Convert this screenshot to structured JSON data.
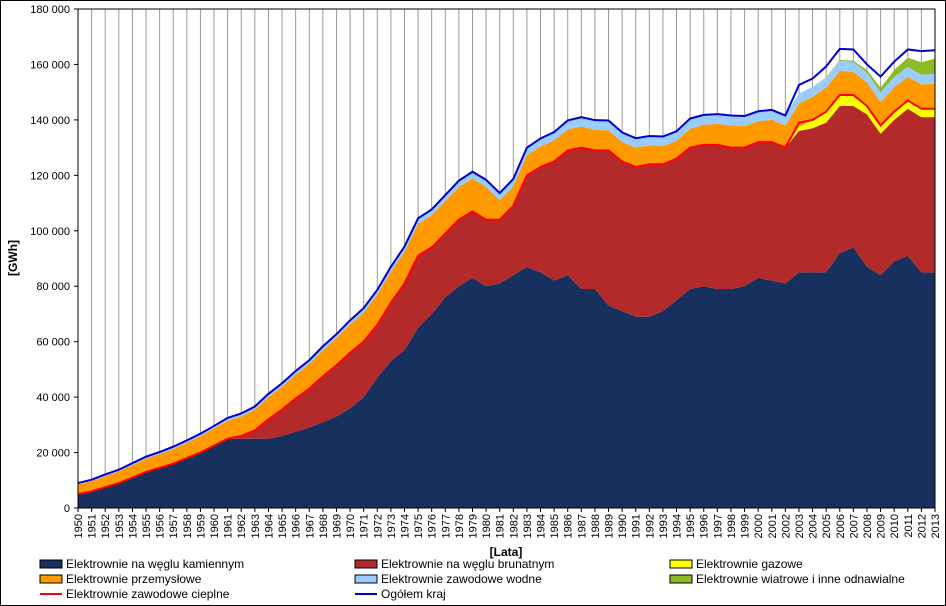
{
  "chart_data": {
    "type": "area",
    "stacked": true,
    "xlabel": "[Lata]",
    "ylabel": "[GWh]",
    "ylim": [
      0,
      180000
    ],
    "yticks": [
      "0",
      "20 000",
      "40 000",
      "60 000",
      "80 000",
      "100 000",
      "120 000",
      "140 000",
      "160 000",
      "180 000"
    ],
    "grid": "vertical",
    "legend": "bottom",
    "x": [
      1950,
      1951,
      1952,
      1953,
      1954,
      1955,
      1956,
      1957,
      1958,
      1959,
      1960,
      1961,
      1962,
      1963,
      1964,
      1965,
      1966,
      1967,
      1968,
      1969,
      1970,
      1971,
      1972,
      1973,
      1974,
      1975,
      1976,
      1977,
      1978,
      1979,
      1980,
      1981,
      1982,
      1983,
      1984,
      1985,
      1986,
      1987,
      1988,
      1989,
      1990,
      1991,
      1992,
      1993,
      1994,
      1995,
      1996,
      1997,
      1998,
      1999,
      2000,
      2001,
      2002,
      2003,
      2004,
      2005,
      2006,
      2007,
      2008,
      2009,
      2010,
      2011,
      2012,
      2013
    ],
    "series": [
      {
        "name": "Elektrownie na węglu kamiennym",
        "color": "#17305e",
        "values": [
          5000,
          6000,
          7500,
          9000,
          11000,
          13000,
          14500,
          16000,
          18000,
          20000,
          22500,
          25000,
          25000,
          25000,
          25000,
          26000,
          27500,
          29000,
          31000,
          33000,
          36000,
          40000,
          47000,
          53000,
          57000,
          65000,
          70000,
          76000,
          80000,
          83000,
          80000,
          81000,
          84000,
          87000,
          85000,
          82000,
          84000,
          79000,
          79000,
          73000,
          71000,
          69000,
          69000,
          71000,
          75000,
          79000,
          80000,
          79000,
          79000,
          80000,
          83000,
          82000,
          81000,
          85000,
          85000,
          85000,
          92000,
          94000,
          87000,
          84000,
          89000,
          91000,
          85000,
          85000
        ]
      },
      {
        "name": "Elektrownie na węglu brunatnym",
        "color": "#b22a2a",
        "values": [
          0,
          0,
          0,
          0,
          0,
          0,
          0,
          0,
          0,
          0,
          0,
          0,
          1000,
          3000,
          7000,
          9500,
          12000,
          14000,
          16500,
          18500,
          20000,
          20000,
          19000,
          21000,
          24000,
          26000,
          24000,
          23000,
          24000,
          24000,
          24000,
          23000,
          25000,
          33000,
          38000,
          43000,
          45000,
          51000,
          50000,
          56000,
          54000,
          54000,
          55000,
          53000,
          51000,
          51000,
          51000,
          52000,
          51000,
          50000,
          49000,
          50000,
          49000,
          51000,
          52000,
          54000,
          53000,
          51000,
          55000,
          51000,
          51000,
          53000,
          56000,
          56000
        ]
      },
      {
        "name": "Elektrownie gazowe",
        "color": "#ffff00",
        "values": [
          0,
          0,
          0,
          0,
          0,
          0,
          0,
          0,
          0,
          0,
          0,
          0,
          0,
          0,
          0,
          0,
          0,
          0,
          0,
          0,
          0,
          0,
          0,
          0,
          0,
          0,
          0,
          0,
          0,
          0,
          0,
          0,
          0,
          0,
          0,
          0,
          0,
          0,
          0,
          0,
          0,
          0,
          0,
          0,
          0,
          0,
          0,
          0,
          0,
          0,
          0,
          0,
          0,
          1500,
          3000,
          4500,
          4000,
          4000,
          3500,
          3000,
          3000,
          3000,
          3000,
          3000
        ]
      },
      {
        "name": "Elektrownie przemysłowe",
        "color": "#ff9900",
        "values": [
          3500,
          3700,
          4000,
          4200,
          4500,
          4800,
          5000,
          5300,
          5600,
          5900,
          6200,
          6500,
          7000,
          7500,
          8000,
          8300,
          8600,
          9000,
          9400,
          9800,
          10200,
          10500,
          11000,
          11200,
          11400,
          11500,
          11600,
          11700,
          11800,
          11900,
          11900,
          7000,
          7000,
          7200,
          7400,
          7600,
          7600,
          7600,
          7400,
          7200,
          7000,
          7000,
          6800,
          6600,
          6400,
          6800,
          7200,
          7600,
          8000,
          7700,
          7500,
          8000,
          8000,
          8400,
          8300,
          8200,
          8700,
          8300,
          8000,
          8300,
          8800,
          8500,
          8800,
          9000
        ]
      },
      {
        "name": "Elektrownie zawodowe wodne",
        "color": "#99ccff",
        "values": [
          500,
          500,
          600,
          600,
          700,
          700,
          700,
          800,
          800,
          900,
          900,
          1000,
          1100,
          1100,
          1200,
          1200,
          1300,
          1300,
          1400,
          1400,
          1500,
          1600,
          1700,
          1800,
          1900,
          2000,
          2100,
          2200,
          2300,
          2400,
          2500,
          2600,
          2700,
          2800,
          2900,
          3000,
          3200,
          3400,
          3500,
          3600,
          3500,
          3400,
          3400,
          3400,
          3500,
          3700,
          3600,
          3500,
          3600,
          3700,
          3600,
          3600,
          3600,
          3600,
          3600,
          3600,
          3600,
          3600,
          3500,
          3600,
          3700,
          3600,
          3500,
          3600
        ]
      },
      {
        "name": "Elektrownie wiatrowe i inne odnawialne",
        "color": "#8fbc26",
        "values": [
          0,
          0,
          0,
          0,
          0,
          0,
          0,
          0,
          0,
          0,
          0,
          0,
          0,
          0,
          0,
          0,
          0,
          0,
          0,
          0,
          0,
          0,
          0,
          0,
          0,
          0,
          0,
          0,
          0,
          0,
          0,
          0,
          0,
          0,
          0,
          0,
          0,
          0,
          0,
          0,
          0,
          0,
          0,
          0,
          0,
          0,
          0,
          0,
          0,
          0,
          0,
          0,
          0,
          0,
          0,
          100,
          300,
          500,
          1000,
          1700,
          2500,
          3300,
          4500,
          5500
        ]
      }
    ],
    "lines": [
      {
        "name": "Elektrownie zawodowe cieplne",
        "color": "#ff0000",
        "values": [
          5000,
          6000,
          7500,
          9000,
          11000,
          13000,
          14500,
          16000,
          18000,
          20000,
          22500,
          25000,
          26000,
          28000,
          32000,
          35500,
          39500,
          43000,
          47500,
          51500,
          56000,
          60000,
          66000,
          74000,
          81000,
          91000,
          94000,
          99000,
          104000,
          107000,
          104000,
          104000,
          109000,
          120000,
          123000,
          125000,
          129000,
          130000,
          129000,
          129000,
          125000,
          123000,
          124000,
          124000,
          126000,
          130000,
          131000,
          131000,
          130000,
          130000,
          132000,
          132000,
          130000,
          139000,
          140000,
          143000,
          149000,
          149000,
          145000,
          138000,
          143000,
          147000,
          144000,
          144000
        ]
      },
      {
        "name": "Ogółem kraj",
        "color": "#0000cc",
        "values": [
          9000,
          10200,
          12100,
          13800,
          16200,
          18500,
          20200,
          22100,
          24400,
          26800,
          29600,
          32500,
          34100,
          36600,
          41200,
          45000,
          49400,
          53300,
          58300,
          62700,
          67700,
          72100,
          78700,
          87000,
          94300,
          104500,
          107700,
          112900,
          118100,
          121300,
          118400,
          113600,
          118700,
          130000,
          133300,
          135600,
          139800,
          141000,
          139900,
          139800,
          135500,
          133400,
          134200,
          134000,
          135900,
          140500,
          141800,
          142100,
          141600,
          141400,
          143100,
          143600,
          141600,
          152600,
          154900,
          159300,
          165600,
          165400,
          160000,
          155600,
          161000,
          165400,
          164800,
          165100
        ]
      }
    ]
  }
}
